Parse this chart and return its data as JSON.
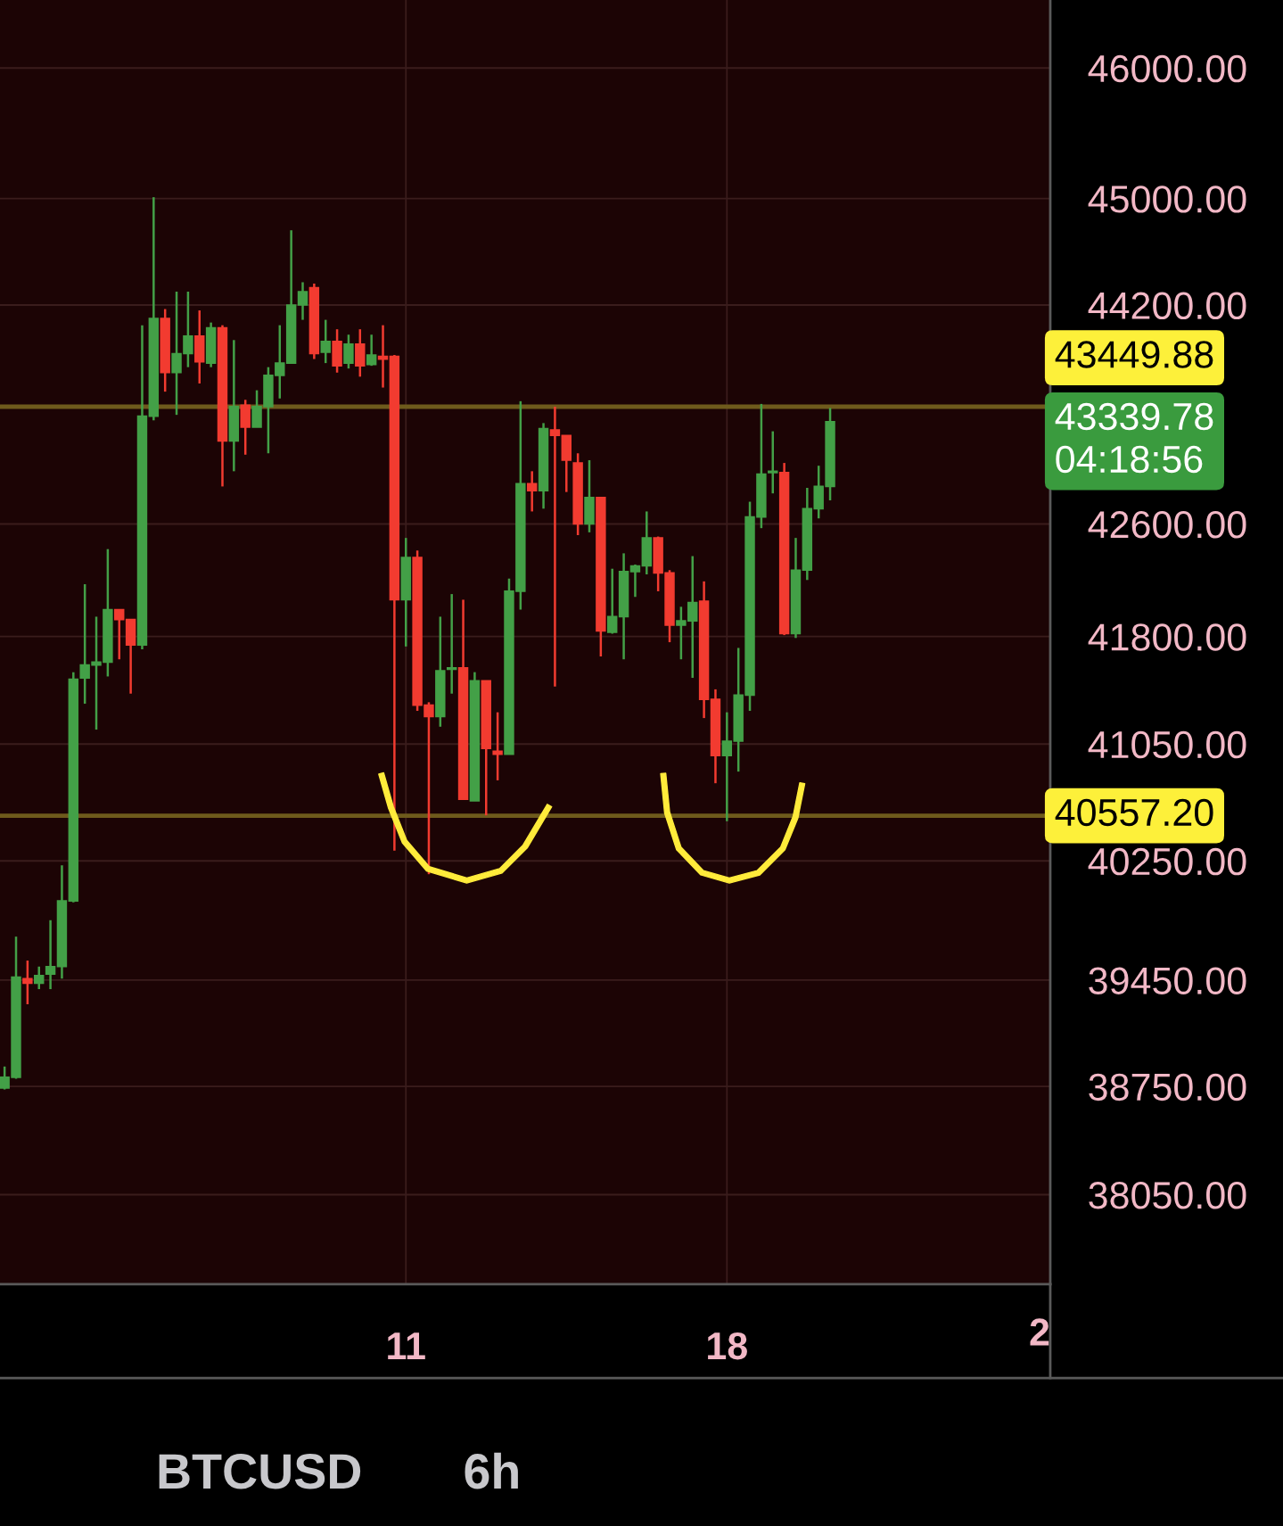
{
  "chart_data": {
    "type": "candlestick",
    "title": "BTCUSD",
    "subtitle": "6h",
    "x": [
      2.25,
      2.5,
      2.75,
      3,
      3.25,
      3.5,
      3.75,
      4,
      4.25,
      4.5,
      4.75,
      5,
      5.25,
      5.5,
      5.75,
      6,
      6.25,
      6.5,
      6.75,
      7,
      7.25,
      7.5,
      7.75,
      8,
      8.25,
      8.5,
      8.75,
      9,
      9.25,
      9.5,
      9.75,
      10,
      10.25,
      10.5,
      10.75,
      11,
      11.25,
      11.5,
      11.75,
      12,
      12.25,
      12.5,
      12.75,
      13,
      13.25,
      13.5,
      13.75,
      14,
      14.25,
      14.5,
      14.75,
      15,
      15.25,
      15.5,
      15.75,
      16,
      16.25,
      16.5,
      16.75,
      17,
      17.25,
      17.5,
      17.75,
      18,
      18.25,
      18.5,
      18.75,
      19,
      19.25,
      19.5,
      19.75,
      20,
      20.25
    ],
    "ohlc": [
      [
        38740,
        38880,
        38730,
        38810
      ],
      [
        38810,
        39740,
        38800,
        39470
      ],
      [
        39460,
        39580,
        39290,
        39430
      ],
      [
        39430,
        39540,
        39390,
        39480
      ],
      [
        39490,
        39850,
        39390,
        39540
      ],
      [
        39540,
        40220,
        39460,
        39980
      ],
      [
        39980,
        41550,
        39970,
        41500
      ],
      [
        41510,
        42170,
        41330,
        41600
      ],
      [
        41600,
        41940,
        41150,
        41620
      ],
      [
        41620,
        42420,
        41520,
        41990
      ],
      [
        41990,
        41990,
        41640,
        41920
      ],
      [
        41920,
        41920,
        41400,
        41740
      ],
      [
        41740,
        44050,
        41710,
        43380
      ],
      [
        43380,
        45010,
        43350,
        44100
      ],
      [
        44100,
        44170,
        43560,
        43700
      ],
      [
        43700,
        44300,
        43390,
        43840
      ],
      [
        43840,
        44300,
        43740,
        43970
      ],
      [
        43970,
        44160,
        43620,
        43780
      ],
      [
        43770,
        44070,
        43740,
        44030
      ],
      [
        44030,
        44050,
        42870,
        43200
      ],
      [
        43200,
        43940,
        42980,
        43450
      ],
      [
        43460,
        43500,
        43100,
        43300
      ],
      [
        43300,
        43570,
        43300,
        43450
      ],
      [
        43450,
        43740,
        43110,
        43680
      ],
      [
        43680,
        44050,
        43510,
        43770
      ],
      [
        43770,
        44760,
        43770,
        44200
      ],
      [
        44200,
        44370,
        44090,
        44300
      ],
      [
        44330,
        44360,
        43800,
        43840
      ],
      [
        43850,
        44090,
        43770,
        43930
      ],
      [
        43930,
        44020,
        43700,
        43750
      ],
      [
        43770,
        43980,
        43730,
        43910
      ],
      [
        43910,
        44020,
        43670,
        43750
      ],
      [
        43760,
        43980,
        43750,
        43830
      ],
      [
        43820,
        44050,
        43590,
        43800
      ],
      [
        43820,
        43830,
        40320,
        42060
      ],
      [
        42060,
        42500,
        41730,
        42360
      ],
      [
        42360,
        42410,
        41280,
        41320
      ],
      [
        41320,
        41340,
        40160,
        41240
      ],
      [
        41240,
        41940,
        41170,
        41560
      ],
      [
        41570,
        42100,
        41400,
        41580
      ],
      [
        41580,
        42060,
        40670,
        40670
      ],
      [
        40660,
        41550,
        40660,
        41490
      ],
      [
        41490,
        41490,
        40560,
        41020
      ],
      [
        41000,
        41270,
        40800,
        40980
      ],
      [
        40980,
        42210,
        40980,
        42120
      ],
      [
        42120,
        43490,
        41990,
        42890
      ],
      [
        42890,
        42980,
        42690,
        42840
      ],
      [
        42840,
        43330,
        42710,
        43290
      ],
      [
        43280,
        43450,
        41450,
        43240
      ],
      [
        43240,
        43240,
        42830,
        43060
      ],
      [
        43040,
        43110,
        42520,
        42600
      ],
      [
        42600,
        43060,
        42540,
        42790
      ],
      [
        42790,
        42790,
        41660,
        41840
      ],
      [
        41830,
        42280,
        41820,
        41940
      ],
      [
        41940,
        42390,
        41640,
        42260
      ],
      [
        42260,
        42310,
        42080,
        42300
      ],
      [
        42300,
        42690,
        42240,
        42500
      ],
      [
        42500,
        42510,
        42120,
        42250
      ],
      [
        42250,
        42270,
        41760,
        41880
      ],
      [
        41880,
        42010,
        41640,
        41910
      ],
      [
        41910,
        42370,
        41510,
        42040
      ],
      [
        42050,
        42190,
        41230,
        41360
      ],
      [
        41360,
        41430,
        40780,
        40970
      ],
      [
        40970,
        41270,
        40520,
        41070
      ],
      [
        41070,
        41720,
        40860,
        41390
      ],
      [
        41390,
        42760,
        41280,
        42650
      ],
      [
        42650,
        43470,
        42570,
        42960
      ],
      [
        42970,
        43270,
        42820,
        42980
      ],
      [
        42970,
        43040,
        41810,
        41820
      ],
      [
        41820,
        42500,
        41790,
        42270
      ],
      [
        42270,
        42860,
        42200,
        42710
      ],
      [
        42710,
        43020,
        42640,
        42870
      ],
      [
        42870,
        43440,
        42770,
        43339.78
      ]
    ],
    "colors": [
      "#43a047",
      "#43a047",
      "#f23b30",
      "#43a047",
      "#43a047",
      "#43a047",
      "#43a047",
      "#43a047",
      "#43a047",
      "#43a047",
      "#f23b30",
      "#f23b30",
      "#43a047",
      "#43a047",
      "#f23b30",
      "#43a047",
      "#43a047",
      "#f23b30",
      "#43a047",
      "#f23b30",
      "#43a047",
      "#f23b30",
      "#43a047",
      "#43a047",
      "#43a047",
      "#43a047",
      "#43a047",
      "#f23b30",
      "#43a047",
      "#f23b30",
      "#43a047",
      "#f23b30",
      "#43a047",
      "#f23b30",
      "#f23b30",
      "#43a047",
      "#f23b30",
      "#f23b30",
      "#43a047",
      "#43a047",
      "#f23b30",
      "#43a047",
      "#f23b30",
      "#f23b30",
      "#43a047",
      "#43a047",
      "#f23b30",
      "#43a047",
      "#f23b30",
      "#f23b30",
      "#f23b30",
      "#43a047",
      "#f23b30",
      "#43a047",
      "#43a047",
      "#43a047",
      "#43a047",
      "#f23b30",
      "#f23b30",
      "#43a047",
      "#43a047",
      "#f23b30",
      "#f23b30",
      "#43a047",
      "#43a047",
      "#43a047",
      "#43a047",
      "#43a047",
      "#f23b30",
      "#43a047",
      "#43a047",
      "#43a047",
      "#43a047"
    ],
    "xlim": [
      2.15,
      25.05
    ],
    "xticks": [
      11,
      18
    ],
    "log": true,
    "ylim": [
      37480,
      46530
    ],
    "yticks": [
      {
        "value": 38050,
        "label": "38050.00"
      },
      {
        "value": 38750,
        "label": "38750.00"
      },
      {
        "value": 39450,
        "label": "39450.00"
      },
      {
        "value": 40250,
        "label": "40250.00"
      },
      {
        "value": 41050,
        "label": "41050.00"
      },
      {
        "value": 41800,
        "label": "41800.00"
      },
      {
        "value": 42600,
        "label": "42600.00"
      },
      {
        "value": 44200,
        "label": "44200.00"
      },
      {
        "value": 45000,
        "label": "45000.00"
      },
      {
        "value": 46000,
        "label": "46000.00"
      }
    ],
    "grid": true,
    "ref_lines": [
      {
        "axis": "y",
        "value": 43449.88,
        "label": "43449.88",
        "color": "#6e5a1c"
      },
      {
        "axis": "y",
        "value": 40557.2,
        "label": "40557.20",
        "color": "#6e5a1c"
      }
    ],
    "annotations": [
      "43339.78",
      "04:18:56",
      "2"
    ]
  }
}
